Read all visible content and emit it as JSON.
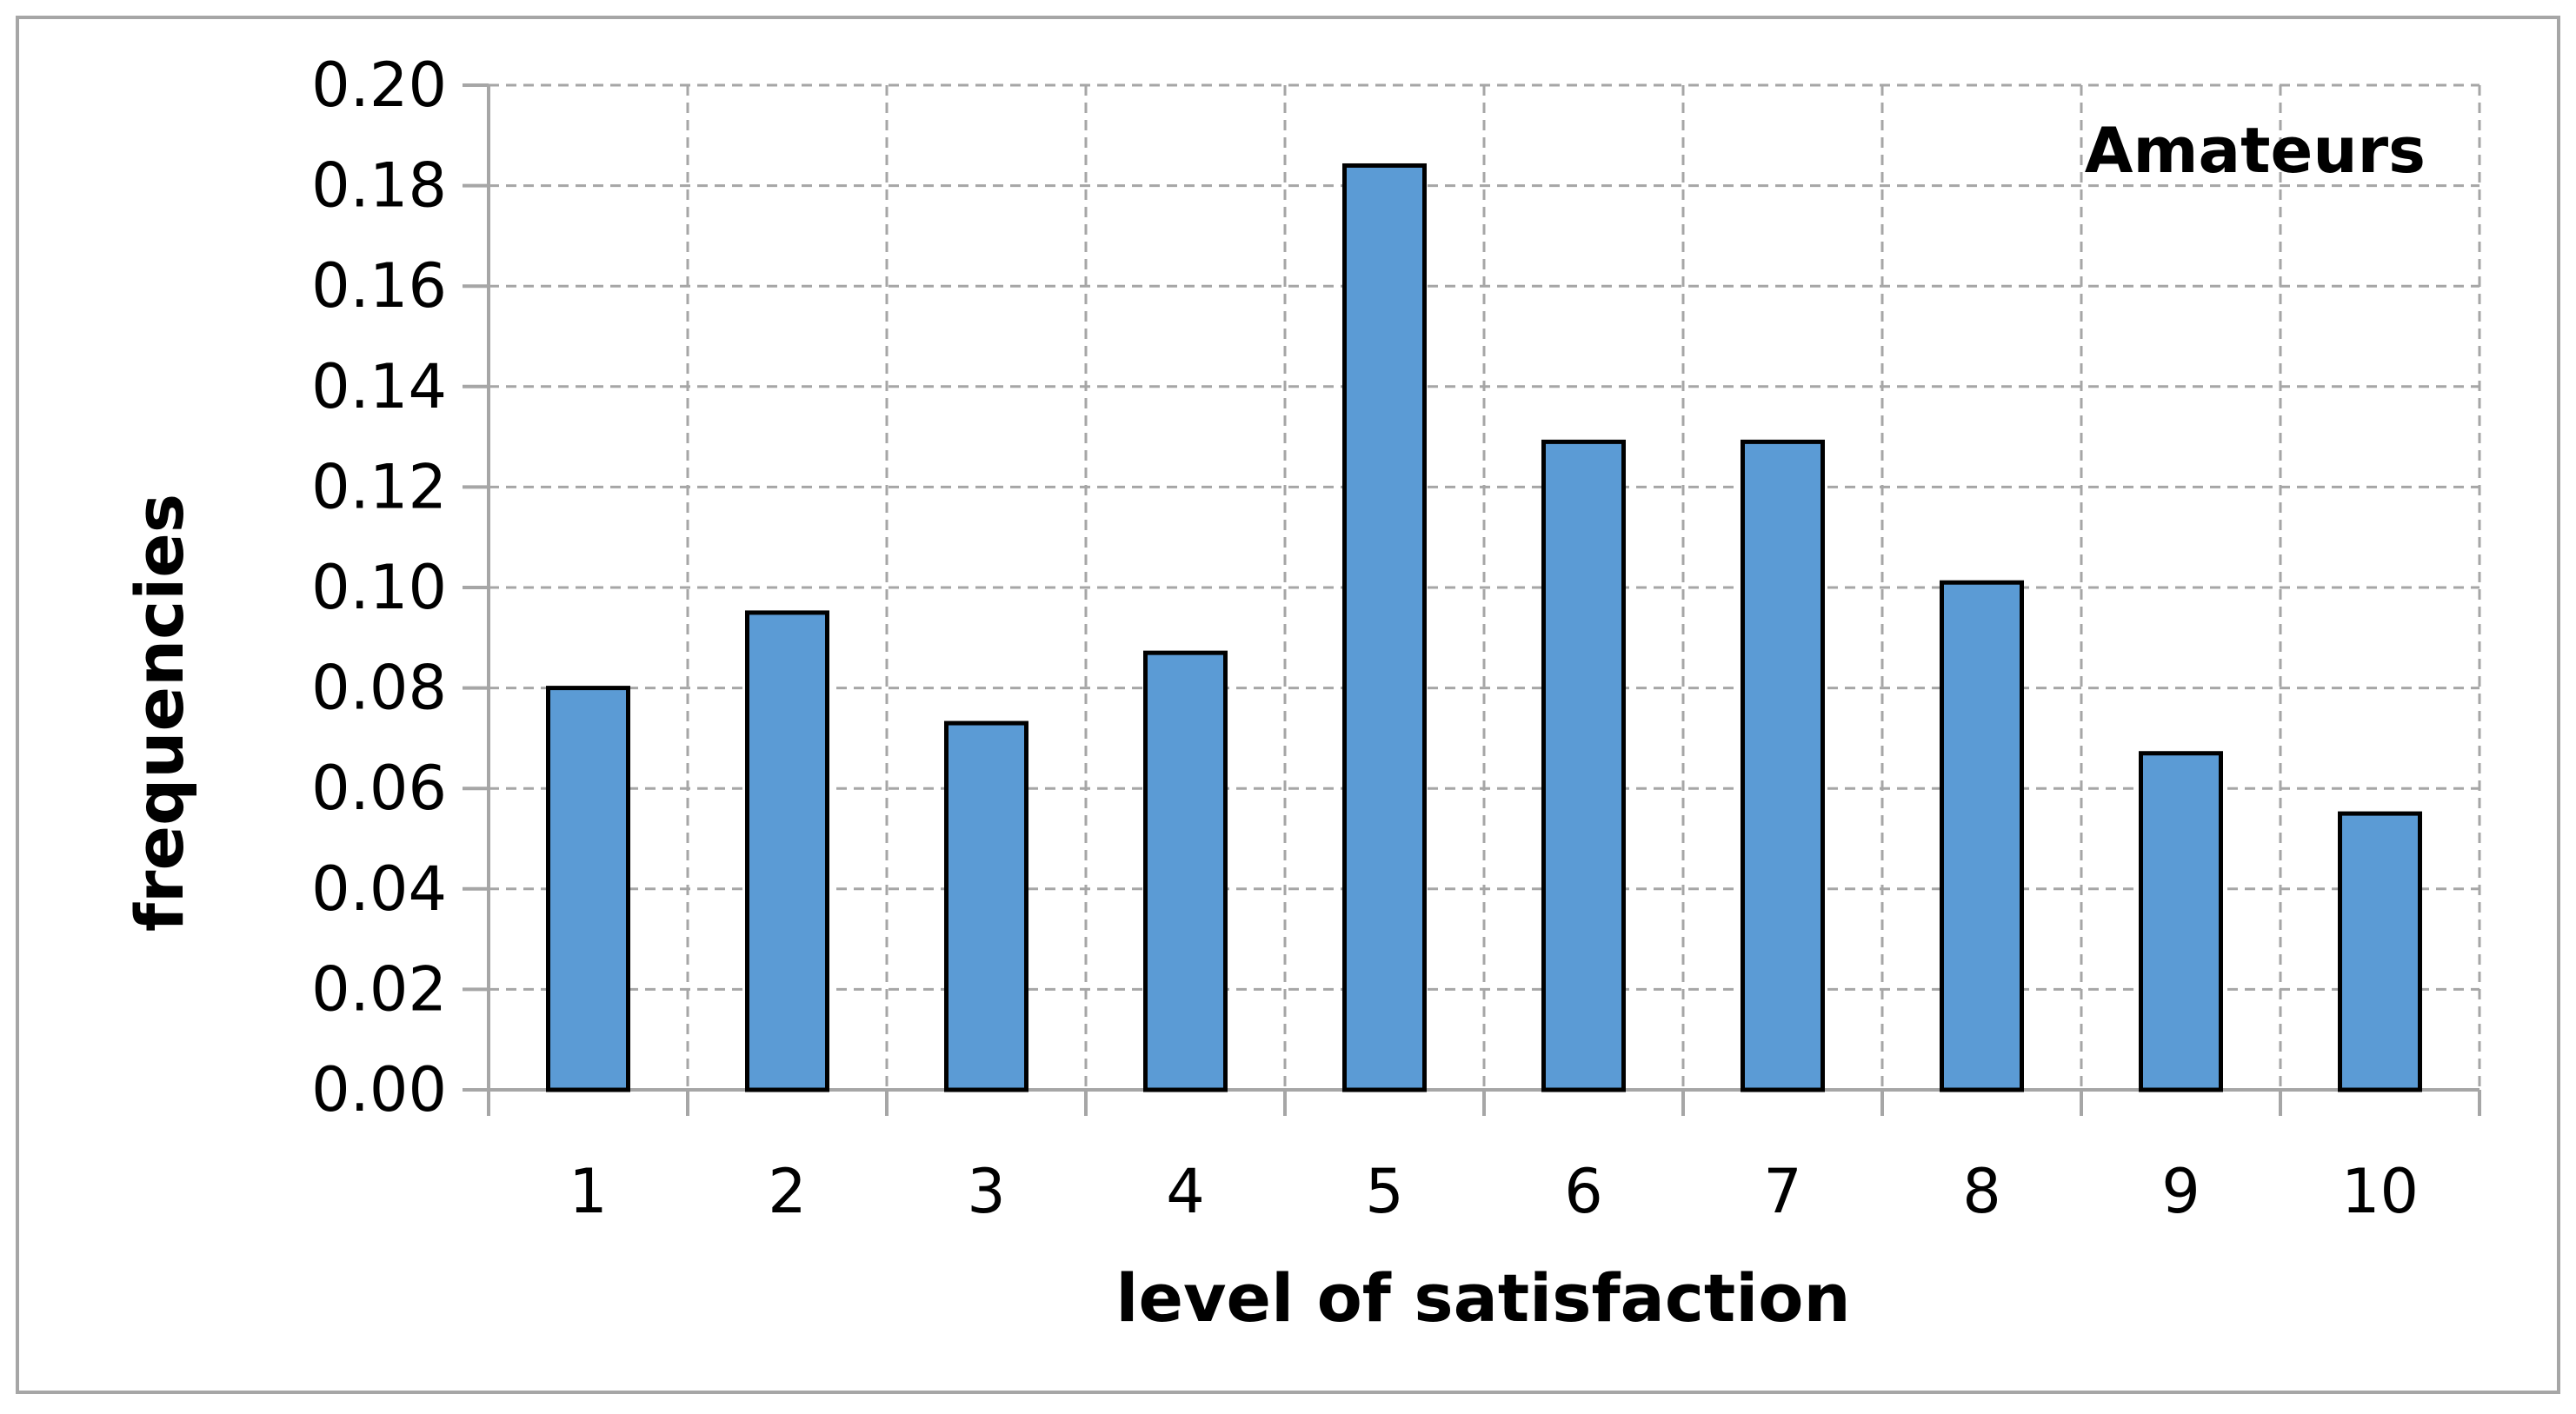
{
  "chart_data": {
    "type": "bar",
    "annotation": "Amateurs",
    "xlabel": "level of satisfaction",
    "ylabel": "frequencies",
    "categories": [
      "1",
      "2",
      "3",
      "4",
      "5",
      "6",
      "7",
      "8",
      "9",
      "10"
    ],
    "values": [
      0.08,
      0.095,
      0.073,
      0.087,
      0.184,
      0.129,
      0.129,
      0.101,
      0.067,
      0.055
    ],
    "ylim": [
      0,
      0.2
    ],
    "yticks": [
      "0.00",
      "0.02",
      "0.04",
      "0.06",
      "0.08",
      "0.10",
      "0.12",
      "0.14",
      "0.16",
      "0.18",
      "0.20"
    ],
    "grid": true,
    "bar_color": "#5b9bd5",
    "bar_edge_color": "#000000",
    "grid_color": "#a6a6a6",
    "frame_color": "#a6a6a6"
  }
}
